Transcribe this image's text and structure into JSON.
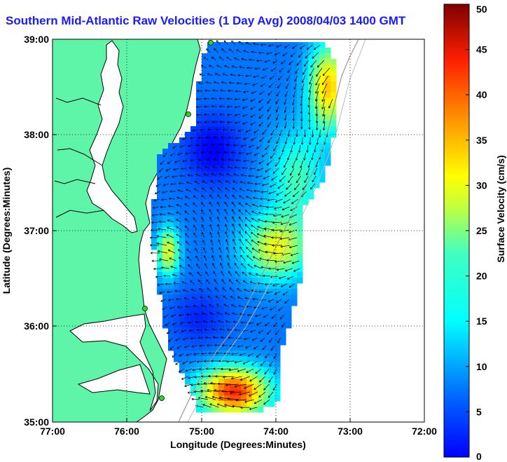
{
  "title": "Southern Mid-Atlantic Raw Velocities (1 Day Avg) 2008/04/03 1400 GMT",
  "chart_data": {
    "type": "heatmap",
    "xlabel": "Longitude (Degrees:Minutes)",
    "ylabel": "Latitude (Degrees:Minutes)",
    "colorbar_label": "Surface Velocity (cm/s)",
    "x_ticks": [
      "77:00",
      "76:00",
      "75:00",
      "74:00",
      "73:00",
      "72:00"
    ],
    "y_ticks": [
      "35:00",
      "36:00",
      "37:00",
      "38:00",
      "39:00"
    ],
    "colorbar_ticks": [
      "0",
      "5",
      "10",
      "15",
      "20",
      "25",
      "30",
      "35",
      "40",
      "45",
      "50"
    ],
    "xlim": [
      -77,
      -72
    ],
    "ylim": [
      35,
      39
    ],
    "clim": [
      0,
      50
    ],
    "grid": true,
    "colormap": "jet",
    "land_color": "#5ef5a8",
    "title_color": "#1a1aff"
  }
}
